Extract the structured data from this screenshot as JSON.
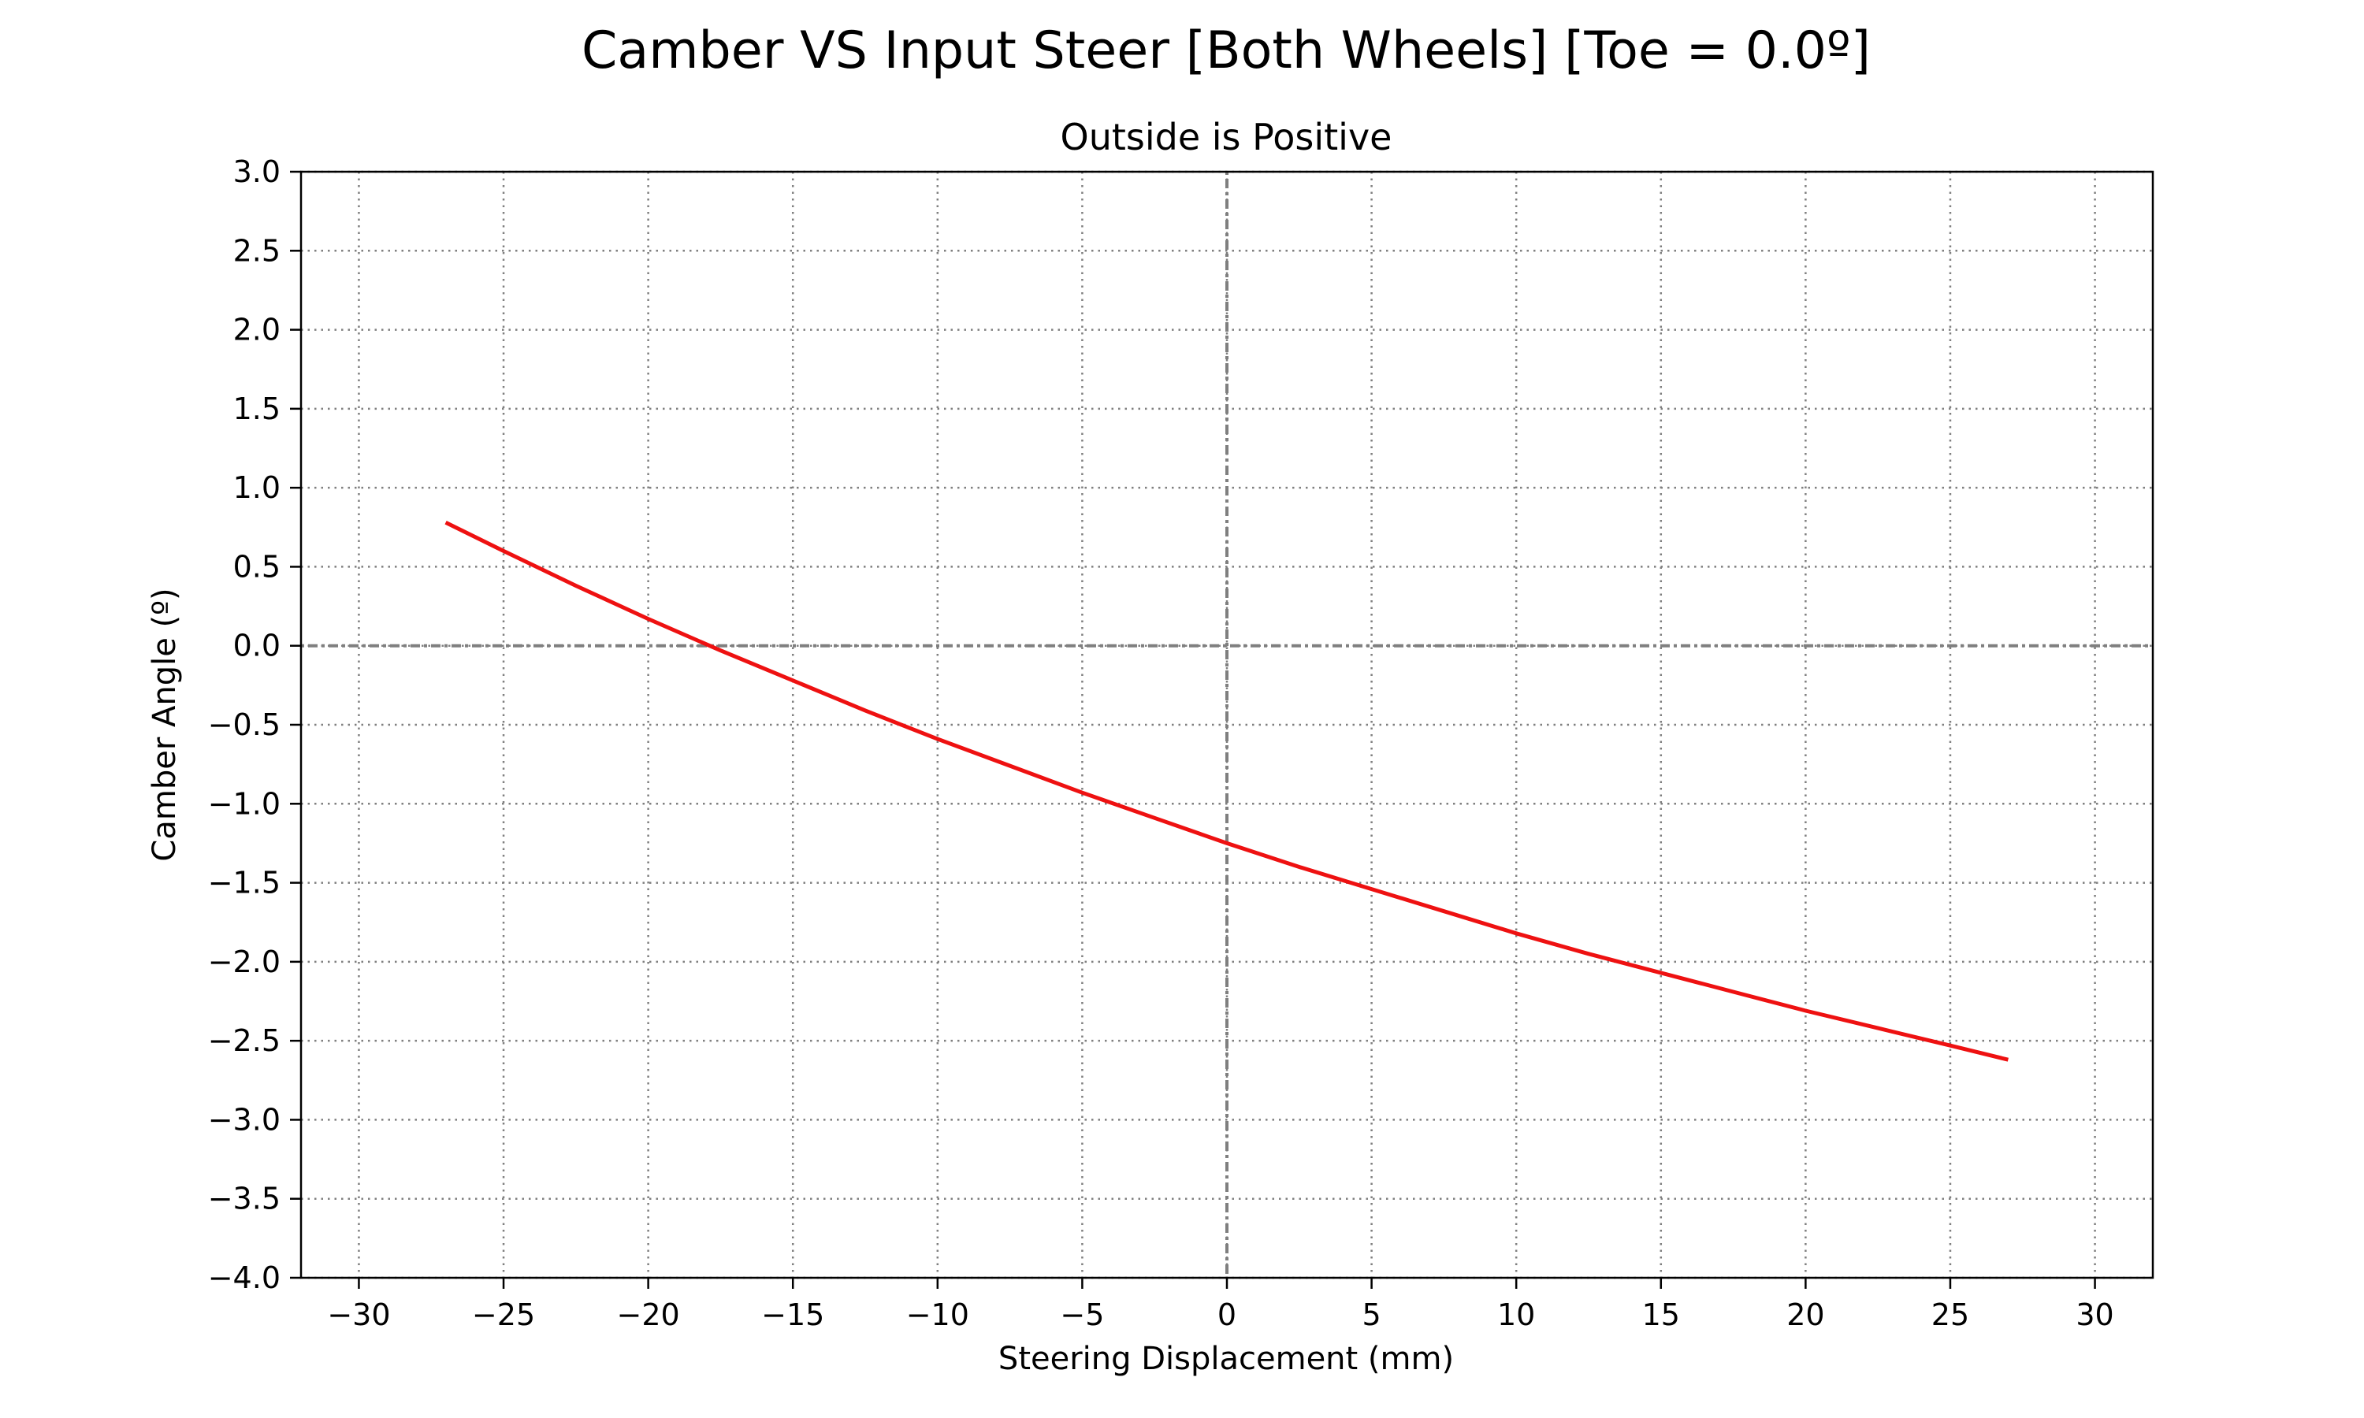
{
  "chart_data": {
    "type": "line",
    "title": "Camber VS Input Steer [Both Wheels] [Toe = 0.0º]",
    "subtitle": "Outside is Positive",
    "xlabel": "Steering Displacement (mm)",
    "ylabel": "Camber Angle (º)",
    "xlim": [
      -32,
      32
    ],
    "ylim": [
      -4.0,
      3.0
    ],
    "xticks": [
      -30,
      -25,
      -20,
      -15,
      -10,
      -5,
      0,
      5,
      10,
      15,
      20,
      25,
      30
    ],
    "xtick_labels": [
      "−30",
      "−25",
      "−20",
      "−15",
      "−10",
      "−5",
      "0",
      "5",
      "10",
      "15",
      "20",
      "25",
      "30"
    ],
    "yticks": [
      3.0,
      2.5,
      2.0,
      1.5,
      1.0,
      0.5,
      0.0,
      -0.5,
      -1.0,
      -1.5,
      -2.0,
      -2.5,
      -3.0,
      -3.5,
      -4.0
    ],
    "ytick_labels": [
      "3.0",
      "2.5",
      "2.0",
      "1.5",
      "1.0",
      "0.5",
      "0.0",
      "−0.5",
      "−1.0",
      "−1.5",
      "−2.0",
      "−2.5",
      "−3.0",
      "−3.5",
      "−4.0"
    ],
    "grid": true,
    "series": [
      {
        "color": "#ee1111",
        "x": [
          -27,
          -25,
          -22.5,
          -20,
          -17.5,
          -15,
          -12.5,
          -10,
          -7.5,
          -5,
          -2.5,
          0,
          2.5,
          5,
          7.5,
          10,
          12.5,
          15,
          17.5,
          20,
          22.5,
          25,
          27
        ],
        "y": [
          0.78,
          0.6,
          0.38,
          0.17,
          -0.03,
          -0.22,
          -0.41,
          -0.59,
          -0.76,
          -0.93,
          -1.09,
          -1.25,
          -1.4,
          -1.54,
          -1.68,
          -1.82,
          -1.95,
          -2.07,
          -2.19,
          -2.31,
          -2.42,
          -2.53,
          -2.62
        ]
      }
    ]
  }
}
